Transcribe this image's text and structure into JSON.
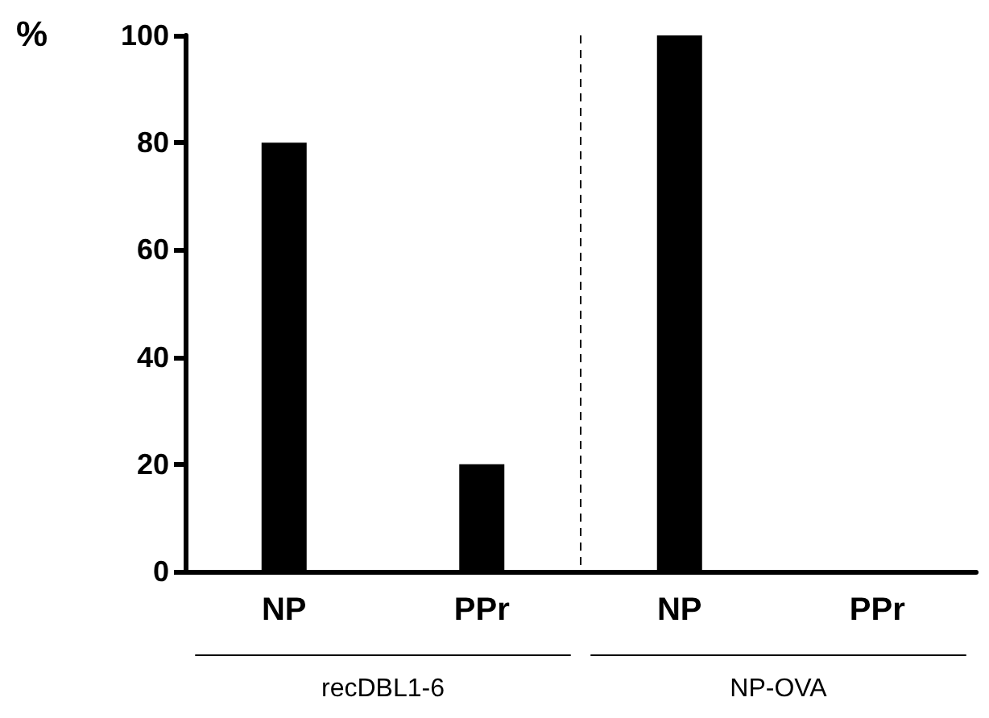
{
  "chart_data": {
    "type": "bar",
    "ylabel": "%",
    "categories": [
      "NP",
      "PPr",
      "NP",
      "PPr"
    ],
    "values": [
      80,
      20,
      100,
      0
    ],
    "color": "#000000",
    "ylim": [
      0,
      100
    ],
    "yticks": [
      0,
      20,
      40,
      60,
      80,
      100
    ],
    "grid": false,
    "annotations": [
      "recDBL1-6",
      "NP-OVA"
    ]
  }
}
